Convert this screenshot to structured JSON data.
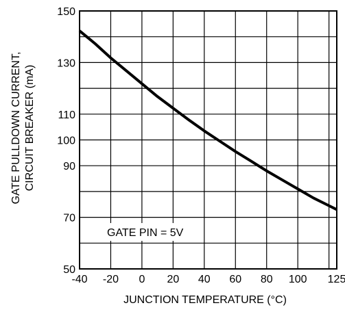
{
  "chart_data": {
    "type": "line",
    "title": "",
    "xlabel": "JUNCTION TEMPERATURE (°C)",
    "ylabel_lines": [
      "GATE PULLDOWN CURRENT,",
      "CIRCUIT BREAKER (mA)"
    ],
    "xlim": [
      -40,
      125
    ],
    "ylim": [
      50,
      150
    ],
    "x_ticks": [
      -40,
      -20,
      0,
      20,
      40,
      60,
      80,
      100,
      125
    ],
    "x_tick_labels": [
      "-40",
      "-20",
      "0",
      "20",
      "40",
      "60",
      "80",
      "100",
      "125"
    ],
    "x_grid": [
      -40,
      -20,
      0,
      20,
      40,
      60,
      80,
      100,
      120
    ],
    "y_ticks": [
      50,
      70,
      90,
      100,
      110,
      130,
      150
    ],
    "y_tick_labels": [
      "50",
      "70",
      "90",
      "100",
      "110",
      "130",
      "150"
    ],
    "y_grid": [
      50,
      60,
      70,
      80,
      90,
      100,
      110,
      120,
      130,
      140,
      150
    ],
    "grid": true,
    "annotation": "GATE PIN = 5V",
    "series": [
      {
        "x": [
          -40,
          -30,
          -20,
          -10,
          0,
          10,
          20,
          30,
          40,
          50,
          60,
          70,
          80,
          90,
          100,
          110,
          120,
          125
        ],
        "y": [
          142.3,
          137.3,
          131.8,
          126.8,
          121.8,
          116.8,
          112.3,
          107.8,
          103.5,
          99.5,
          95.5,
          91.8,
          88.0,
          84.5,
          81.0,
          77.5,
          74.5,
          73.0
        ]
      }
    ]
  }
}
